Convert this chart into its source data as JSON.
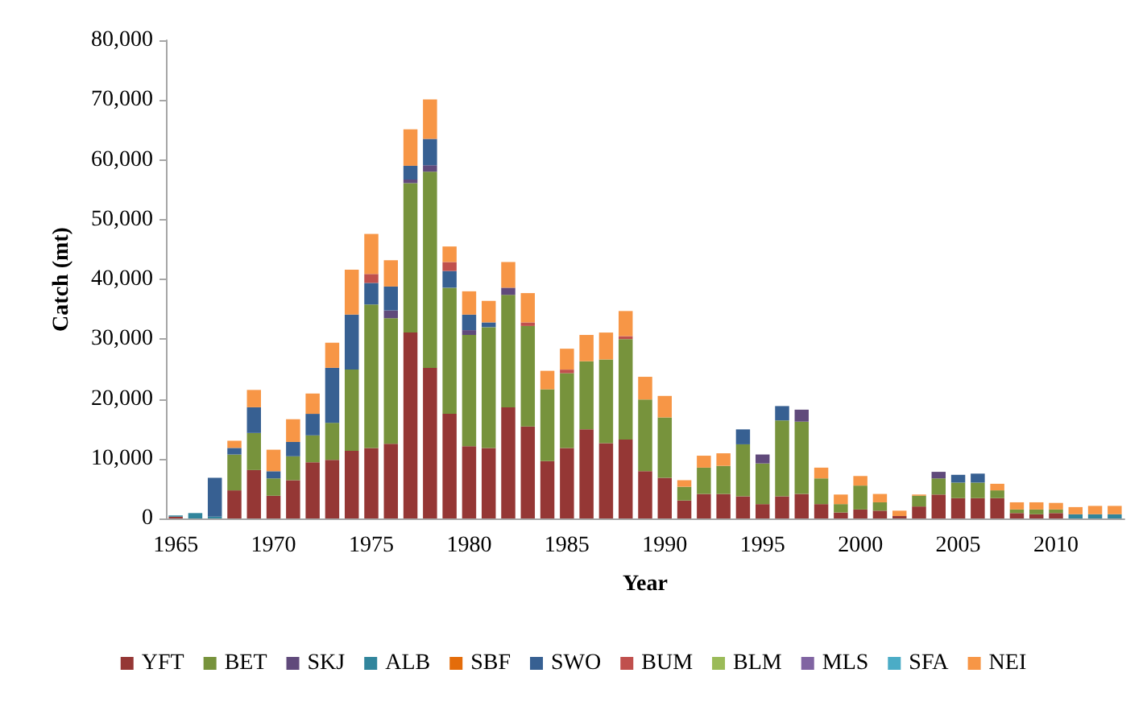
{
  "chart_data": {
    "type": "bar",
    "stacked": true,
    "xlabel": "Year",
    "ylabel": "Catch (mt)",
    "categories": [
      "1965",
      null,
      null,
      null,
      null,
      "1970",
      null,
      null,
      null,
      null,
      "1975",
      null,
      null,
      null,
      null,
      "1980",
      null,
      null,
      null,
      null,
      "1985",
      null,
      null,
      null,
      null,
      "1990",
      null,
      null,
      null,
      null,
      "1995",
      null,
      null,
      null,
      null,
      "2000",
      null,
      null,
      null,
      null,
      "2005",
      null,
      null,
      null,
      null,
      "2010",
      null,
      null,
      null
    ],
    "ylim": [
      0,
      80000
    ],
    "yticks": [
      {
        "value": 0,
        "label": "0"
      },
      {
        "value": 10000,
        "label": "10,000"
      },
      {
        "value": 20000,
        "label": "20,000"
      },
      {
        "value": 30000,
        "label": "30,000"
      },
      {
        "value": 40000,
        "label": "40,000"
      },
      {
        "value": 50000,
        "label": "50,000"
      },
      {
        "value": 60000,
        "label": "60,000"
      },
      {
        "value": 70000,
        "label": "70,000"
      },
      {
        "value": 80000,
        "label": "80,000"
      }
    ],
    "grid": false,
    "legend": "bottom",
    "series": [
      {
        "name": "YFT",
        "color": "#953735",
        "values": [
          300,
          0,
          0,
          4700,
          8100,
          3800,
          6400,
          9400,
          9800,
          11300,
          11800,
          12500,
          31100,
          25200,
          17500,
          12100,
          11800,
          18600,
          15400,
          9600,
          11800,
          14900,
          12600,
          13200,
          7900,
          6800,
          3000,
          4100,
          4100,
          3700,
          2400,
          3700,
          4100,
          2400,
          1000,
          1500,
          1300,
          400,
          2000,
          4000,
          3400,
          3400,
          3400,
          900,
          700,
          900,
          0,
          0,
          0
        ]
      },
      {
        "name": "BET",
        "color": "#77933c",
        "values": [
          0,
          0,
          0,
          6000,
          6200,
          2900,
          4000,
          4500,
          6200,
          13600,
          24000,
          21000,
          25000,
          32800,
          21100,
          18600,
          20200,
          18800,
          16800,
          12000,
          12500,
          11400,
          14000,
          16800,
          12000,
          10100,
          2300,
          4400,
          4700,
          8700,
          6800,
          12700,
          12100,
          4300,
          1400,
          4000,
          1400,
          0,
          1800,
          2700,
          2600,
          2600,
          1300,
          600,
          800,
          600,
          0,
          0,
          0
        ]
      },
      {
        "name": "SKJ",
        "color": "#604a7b",
        "values": [
          0,
          0,
          0,
          0,
          0,
          0,
          0,
          0,
          0,
          0,
          0,
          1300,
          600,
          1100,
          0,
          800,
          0,
          1200,
          0,
          0,
          0,
          0,
          0,
          0,
          0,
          0,
          0,
          0,
          0,
          0,
          1500,
          0,
          2000,
          0,
          0,
          0,
          0,
          0,
          0,
          1100,
          0,
          0,
          0,
          0,
          0,
          0,
          0,
          0,
          0
        ]
      },
      {
        "name": "ALB",
        "color": "#31859c",
        "values": [
          200,
          900,
          300,
          0,
          0,
          0,
          0,
          0,
          0,
          0,
          0,
          0,
          0,
          0,
          0,
          0,
          0,
          0,
          0,
          0,
          0,
          0,
          0,
          0,
          0,
          0,
          0,
          0,
          0,
          0,
          0,
          0,
          0,
          0,
          0,
          0,
          0,
          0,
          0,
          0,
          0,
          0,
          0,
          0,
          0,
          0,
          700,
          700,
          700
        ]
      },
      {
        "name": "SBF",
        "color": "#e46c0a",
        "values": [
          0,
          0,
          0,
          0,
          0,
          0,
          0,
          0,
          0,
          0,
          0,
          0,
          0,
          0,
          0,
          0,
          0,
          0,
          0,
          0,
          0,
          0,
          0,
          0,
          0,
          0,
          0,
          0,
          0,
          0,
          0,
          0,
          0,
          0,
          0,
          0,
          0,
          0,
          0,
          0,
          0,
          0,
          0,
          0,
          0,
          0,
          0,
          0,
          0
        ]
      },
      {
        "name": "SWO",
        "color": "#376092",
        "values": [
          0,
          0,
          6500,
          1100,
          4300,
          1200,
          2400,
          3600,
          9200,
          9200,
          3600,
          4000,
          2300,
          4400,
          2800,
          2600,
          800,
          0,
          0,
          0,
          0,
          0,
          0,
          0,
          0,
          0,
          0,
          0,
          0,
          2500,
          0,
          2400,
          0,
          0,
          0,
          0,
          0,
          0,
          0,
          0,
          1300,
          1500,
          0,
          0,
          0,
          0,
          0,
          0,
          0
        ]
      },
      {
        "name": "BUM",
        "color": "#c0504d",
        "values": [
          0,
          0,
          0,
          0,
          0,
          0,
          0,
          0,
          0,
          0,
          1500,
          0,
          0,
          0,
          1500,
          0,
          0,
          0,
          600,
          0,
          600,
          0,
          0,
          500,
          0,
          0,
          0,
          0,
          0,
          0,
          0,
          0,
          0,
          0,
          0,
          0,
          0,
          0,
          0,
          0,
          0,
          0,
          0,
          0,
          0,
          0,
          0,
          0,
          0
        ]
      },
      {
        "name": "BLM",
        "color": "#9bbb59",
        "values": [
          0,
          0,
          0,
          0,
          0,
          0,
          0,
          0,
          0,
          0,
          0,
          0,
          0,
          0,
          0,
          0,
          0,
          0,
          0,
          0,
          0,
          0,
          0,
          0,
          0,
          0,
          0,
          0,
          0,
          0,
          0,
          0,
          0,
          0,
          0,
          0,
          0,
          0,
          0,
          0,
          0,
          0,
          0,
          0,
          0,
          0,
          0,
          0,
          0
        ]
      },
      {
        "name": "MLS",
        "color": "#8064a2",
        "values": [
          0,
          0,
          0,
          0,
          0,
          0,
          0,
          0,
          0,
          0,
          0,
          0,
          0,
          0,
          0,
          0,
          0,
          0,
          0,
          0,
          0,
          0,
          0,
          0,
          0,
          0,
          0,
          0,
          0,
          0,
          0,
          0,
          0,
          0,
          0,
          0,
          0,
          0,
          0,
          0,
          0,
          0,
          0,
          0,
          0,
          0,
          0,
          0,
          0
        ]
      },
      {
        "name": "SFA",
        "color": "#4bacc6",
        "values": [
          0,
          0,
          0,
          0,
          0,
          0,
          0,
          0,
          0,
          0,
          0,
          0,
          0,
          0,
          0,
          0,
          0,
          0,
          0,
          0,
          0,
          0,
          0,
          0,
          0,
          0,
          0,
          0,
          0,
          0,
          0,
          0,
          0,
          0,
          0,
          0,
          0,
          0,
          0,
          0,
          0,
          0,
          0,
          0,
          0,
          0,
          0,
          0,
          0
        ]
      },
      {
        "name": "NEI",
        "color": "#f79646",
        "values": [
          0,
          0,
          0,
          1200,
          2900,
          3600,
          3800,
          3400,
          4200,
          7500,
          6700,
          4400,
          6100,
          6600,
          2600,
          3900,
          3600,
          4300,
          4900,
          3100,
          3500,
          4400,
          4500,
          4200,
          3800,
          3600,
          1100,
          2000,
          2100,
          0,
          0,
          0,
          0,
          1800,
          1600,
          1600,
          1400,
          900,
          200,
          0,
          0,
          0,
          1100,
          1200,
          1200,
          1100,
          1200,
          1400,
          1400
        ]
      }
    ]
  }
}
